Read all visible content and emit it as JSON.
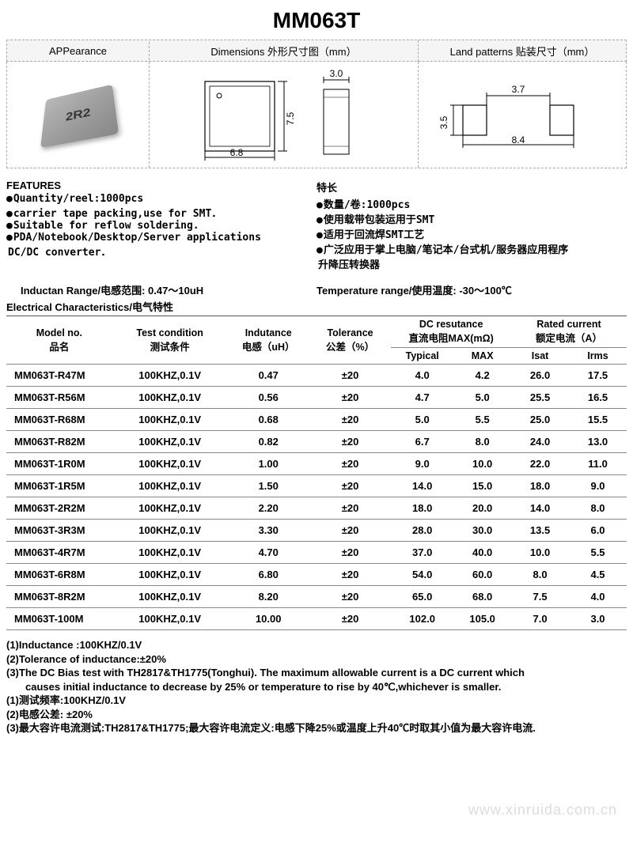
{
  "title": "MM063T",
  "headers": {
    "appearance": "APPearance",
    "dimensions": "Dimensions 外形尺寸图（mm）",
    "land": "Land  patterns  贴装尺寸（mm）"
  },
  "chip_label": "2R2",
  "dims_outline": {
    "w": "6.8",
    "h": "7.5",
    "side_w": "3.0"
  },
  "land": {
    "w1": "3.7",
    "w2": "8.4",
    "h": "3.5"
  },
  "features_en": {
    "title": "FEATURES",
    "items": [
      "Quantity/reel:1000pcs",
      "carrier tape packing,use for SMT．",
      "Suitable for reflow soldering.",
      "PDA/Notebook/Desktop/Server applications"
    ],
    "tail": "  DC/DC converter．"
  },
  "features_cn": {
    "title": "特长",
    "items": [
      "数量/卷:1000pcs",
      "使用载带包装运用于SMT",
      "适用于回流焊SMT工艺",
      "广泛应用于掌上电脑/笔记本/台式机/服务器应用程序"
    ],
    "tail": "升降压转换器"
  },
  "inductance_range": "Inductan Range/电感范围: 0.47～10uH",
  "temperature_range": "Temperature range/使用温度: -30～100℃",
  "ec_title": "Electrical Characteristics/电气特性",
  "table": {
    "head_model1": "Model no.",
    "head_model2": "品名",
    "head_test1": "Test condition",
    "head_test2": "测试条件",
    "head_ind1": "Indutance",
    "head_ind2": "电感（uH）",
    "head_tol1": "Tolerance",
    "head_tol2": "公差（%）",
    "head_dcr1": "DC resutance",
    "head_dcr2": "直流电阻MAX(mΩ)",
    "head_dcr3a": "Typical",
    "head_dcr3b": "MAX",
    "head_rated1": "Rated current",
    "head_rated2": "额定电流（A）",
    "head_rated3a": "Isat",
    "head_rated3b": "Irms",
    "rows": [
      {
        "model": "MM063T-R47M",
        "test": "100KHZ,0.1V",
        "ind": "0.47",
        "tol": "±20",
        "typ": "4.0",
        "max": "4.2",
        "isat": "26.0",
        "irms": "17.5"
      },
      {
        "model": "MM063T-R56M",
        "test": "100KHZ,0.1V",
        "ind": "0.56",
        "tol": "±20",
        "typ": "4.7",
        "max": "5.0",
        "isat": "25.5",
        "irms": "16.5"
      },
      {
        "model": "MM063T-R68M",
        "test": "100KHZ,0.1V",
        "ind": "0.68",
        "tol": "±20",
        "typ": "5.0",
        "max": "5.5",
        "isat": "25.0",
        "irms": "15.5"
      },
      {
        "model": "MM063T-R82M",
        "test": "100KHZ,0.1V",
        "ind": "0.82",
        "tol": "±20",
        "typ": "6.7",
        "max": "8.0",
        "isat": "24.0",
        "irms": "13.0"
      },
      {
        "model": "MM063T-1R0M",
        "test": "100KHZ,0.1V",
        "ind": "1.00",
        "tol": "±20",
        "typ": "9.0",
        "max": "10.0",
        "isat": "22.0",
        "irms": "11.0"
      },
      {
        "model": "MM063T-1R5M",
        "test": "100KHZ,0.1V",
        "ind": "1.50",
        "tol": "±20",
        "typ": "14.0",
        "max": "15.0",
        "isat": "18.0",
        "irms": "9.0"
      },
      {
        "model": "MM063T-2R2M",
        "test": "100KHZ,0.1V",
        "ind": "2.20",
        "tol": "±20",
        "typ": "18.0",
        "max": "20.0",
        "isat": "14.0",
        "irms": "8.0"
      },
      {
        "model": "MM063T-3R3M",
        "test": "100KHZ,0.1V",
        "ind": "3.30",
        "tol": "±20",
        "typ": "28.0",
        "max": "30.0",
        "isat": "13.5",
        "irms": "6.0"
      },
      {
        "model": "MM063T-4R7M",
        "test": "100KHZ,0.1V",
        "ind": "4.70",
        "tol": "±20",
        "typ": "37.0",
        "max": "40.0",
        "isat": "10.0",
        "irms": "5.5"
      },
      {
        "model": "MM063T-6R8M",
        "test": "100KHZ,0.1V",
        "ind": "6.80",
        "tol": "±20",
        "typ": "54.0",
        "max": "60.0",
        "isat": "8.0",
        "irms": "4.5"
      },
      {
        "model": "MM063T-8R2M",
        "test": "100KHZ,0.1V",
        "ind": "8.20",
        "tol": "±20",
        "typ": "65.0",
        "max": "68.0",
        "isat": "7.5",
        "irms": "4.0"
      },
      {
        "model": "MM063T-100M",
        "test": "100KHZ,0.1V",
        "ind": "10.00",
        "tol": "±20",
        "typ": "102.0",
        "max": "105.0",
        "isat": "7.0",
        "irms": "3.0"
      }
    ]
  },
  "notes": [
    "(1)Inductance :100KHZ/0.1V",
    "(2)Tolerance of inductance:±20%",
    "(3)The DC Bias test with TH2817&TH1775(Tonghui). The maximum allowable current is a DC current which",
    "   causes initial inductance to decrease by 25%  or temperature to rise by 40℃,whichever is smaller.",
    "(1)测试频率:100KHZ/0.1V",
    "(2)电感公差: ±20%",
    "(3)最大容许电流测试:TH2817&TH1775;最大容许电流定义:电感下降25%或温度上升40℃时取其小值为最大容许电流."
  ],
  "watermark": "www.xinruida.com.cn"
}
